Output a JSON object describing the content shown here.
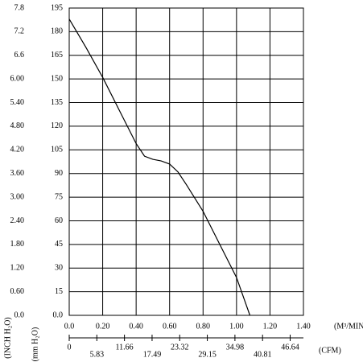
{
  "chart_data": {
    "type": "line",
    "x": [
      0,
      0.1,
      0.2,
      0.3,
      0.4,
      0.45,
      0.5,
      0.55,
      0.6,
      0.65,
      0.7,
      0.8,
      0.9,
      1.0,
      1.08
    ],
    "values": [
      188,
      170,
      151,
      130,
      109,
      101,
      99,
      98,
      96,
      91,
      83,
      66,
      45,
      24,
      0
    ],
    "color": "#000000",
    "xlim": [
      0,
      1.4
    ],
    "xticks": [
      {
        "value": 0,
        "label": "0.0"
      },
      {
        "value": 0.2,
        "label": "0.20"
      },
      {
        "value": 0.4,
        "label": "0.40"
      },
      {
        "value": 0.6,
        "label": "0.60"
      },
      {
        "value": 0.8,
        "label": "0.80"
      },
      {
        "value": 1.0,
        "label": "1.00"
      },
      {
        "value": 1.2,
        "label": "1.20"
      },
      {
        "value": 1.4,
        "label": "1.40"
      }
    ],
    "xlabel": "(M³/MIN.)",
    "x2lim": [
      0,
      49.44
    ],
    "x2ticks": [
      0,
      5.83,
      11.66,
      17.49,
      23.32,
      29.15,
      34.98,
      40.81,
      46.64
    ],
    "x2label": "(CFM)",
    "ylim": [
      0,
      195
    ],
    "yticks": [
      {
        "value": 0,
        "label": "0.0"
      },
      15,
      30,
      45,
      60,
      75,
      90,
      105,
      120,
      135,
      150,
      165,
      180,
      195
    ],
    "ylabel": "(mm H₂O)",
    "y2lim": [
      0,
      7.8
    ],
    "y2ticks": [
      {
        "value": 0,
        "label": "0.0"
      },
      {
        "value": 0.6,
        "label": "0.60"
      },
      {
        "value": 1.2,
        "label": "1.20"
      },
      {
        "value": 1.8,
        "label": "1.80"
      },
      {
        "value": 2.4,
        "label": "2.40"
      },
      {
        "value": 3.0,
        "label": "3.00"
      },
      {
        "value": 3.6,
        "label": "3.60"
      },
      {
        "value": 4.2,
        "label": "4.20"
      },
      {
        "value": 4.8,
        "label": "4.80"
      },
      {
        "value": 5.4,
        "label": "5.40"
      },
      {
        "value": 6.0,
        "label": "6.00"
      },
      {
        "value": 6.6,
        "label": "6.6"
      },
      {
        "value": 7.2,
        "label": "7.2"
      },
      {
        "value": 7.8,
        "label": "7.8"
      }
    ],
    "y2label": "(INCH H₂O)",
    "grid": true
  }
}
